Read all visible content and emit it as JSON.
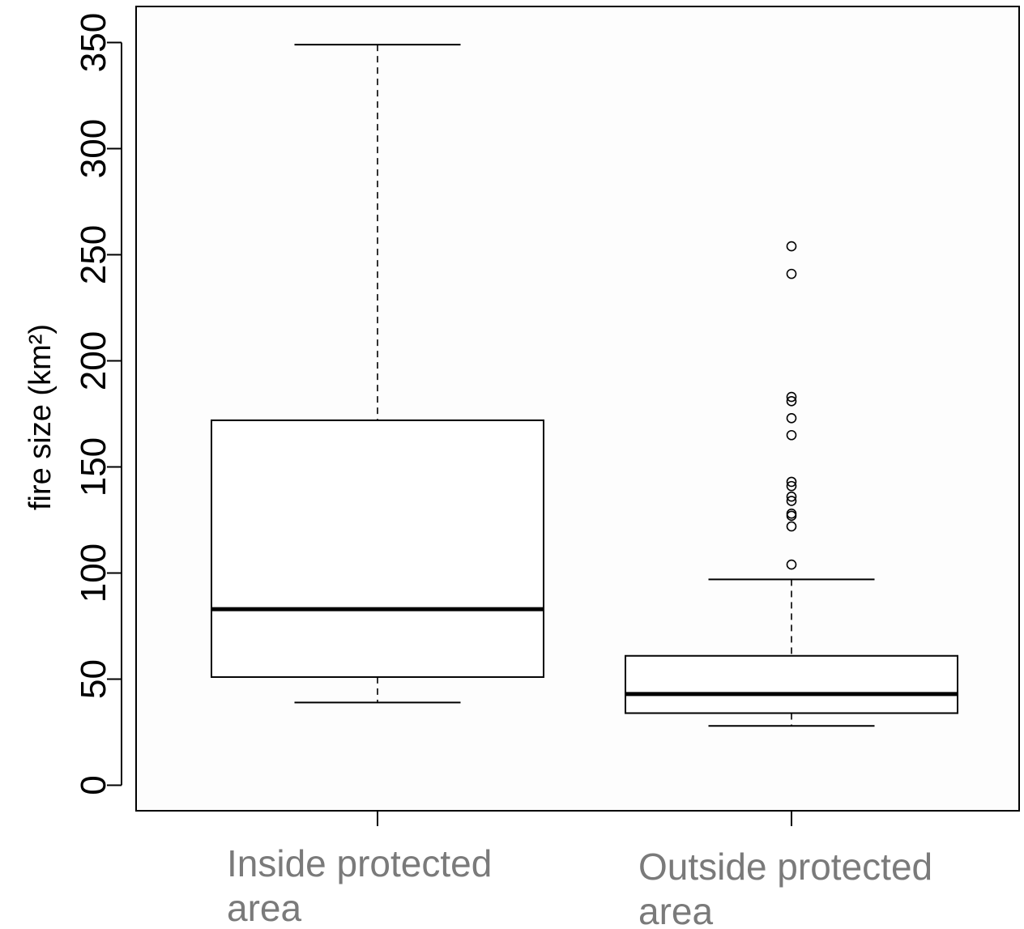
{
  "chart_data": {
    "type": "box",
    "title": "",
    "xlabel": "",
    "ylabel": "fire size (km²)",
    "ylim": [
      -12,
      367
    ],
    "yticks": [
      0,
      50,
      100,
      150,
      200,
      250,
      300,
      350
    ],
    "ytick_labels": [
      "0",
      "50",
      "100",
      "150",
      "200",
      "250",
      "300",
      "350"
    ],
    "grid": false,
    "legend": "none",
    "colors": {
      "box_fill": "#ffffff",
      "stroke": "#000000",
      "category_text": "#7a7a7a"
    },
    "categories": [
      {
        "label_line1": "Inside protected",
        "label_line2": "area"
      },
      {
        "label_line1": "Outside protected",
        "label_line2": "area"
      }
    ],
    "boxes": [
      {
        "min": 39,
        "q1": 51,
        "median": 83,
        "q3": 172,
        "max": 349,
        "outliers": []
      },
      {
        "min": 28,
        "q1": 34,
        "median": 43,
        "q3": 61,
        "max": 97,
        "outliers": [
          104,
          122,
          127,
          128,
          134,
          136,
          141,
          143,
          165,
          173,
          181,
          183,
          241,
          254
        ]
      }
    ]
  }
}
